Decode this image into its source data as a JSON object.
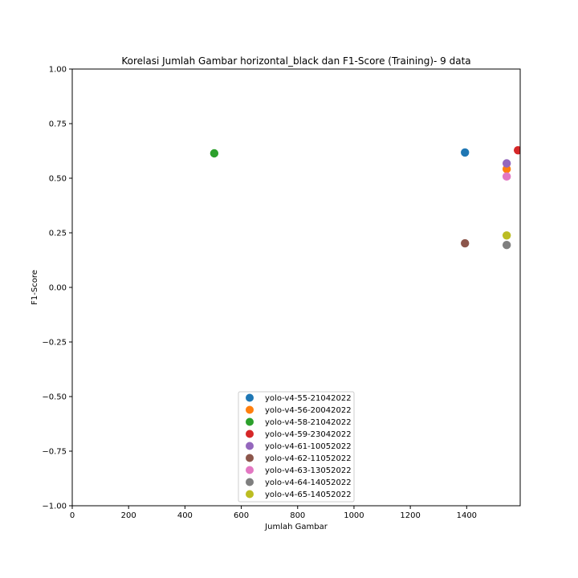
{
  "chart_data": {
    "type": "scatter",
    "title": "Korelasi Jumlah Gambar horizontal_black dan F1-Score (Training)- 9 data",
    "xlabel": "Jumlah Gambar",
    "ylabel": "F1-Score",
    "xlim": [
      0,
      1590
    ],
    "ylim": [
      -1.0,
      1.0
    ],
    "x_ticks": [
      0,
      200,
      400,
      600,
      800,
      1000,
      1200,
      1400
    ],
    "x_tick_labels": [
      "0",
      "200",
      "400",
      "600",
      "800",
      "1000",
      "1200",
      "1400"
    ],
    "y_ticks": [
      -1.0,
      -0.75,
      -0.5,
      -0.25,
      0.0,
      0.25,
      0.5,
      0.75,
      1.0
    ],
    "y_tick_labels": [
      "−1.00",
      "−0.75",
      "−0.50",
      "−0.25",
      "0.00",
      "0.25",
      "0.50",
      "0.75",
      "1.00"
    ],
    "grid": false,
    "legend_position": "bottom-center",
    "series": [
      {
        "name": "yolo-v4-55-21042022",
        "color": "#1f77b4",
        "x": 1394,
        "y": 0.618
      },
      {
        "name": "yolo-v4-56-20042022",
        "color": "#ff7f0e",
        "x": 1542,
        "y": 0.542
      },
      {
        "name": "yolo-v4-58-21042022",
        "color": "#2ca02c",
        "x": 504,
        "y": 0.614
      },
      {
        "name": "yolo-v4-59-23042022",
        "color": "#d62728",
        "x": 1582,
        "y": 0.628
      },
      {
        "name": "yolo-v4-61-10052022",
        "color": "#9467bd",
        "x": 1542,
        "y": 0.568
      },
      {
        "name": "yolo-v4-62-11052022",
        "color": "#8c564b",
        "x": 1394,
        "y": 0.202
      },
      {
        "name": "yolo-v4-63-13052022",
        "color": "#e377c2",
        "x": 1542,
        "y": 0.508
      },
      {
        "name": "yolo-v4-64-14052022",
        "color": "#7f7f7f",
        "x": 1542,
        "y": 0.194
      },
      {
        "name": "yolo-v4-65-14052022",
        "color": "#bcbd22",
        "x": 1542,
        "y": 0.238
      }
    ]
  }
}
